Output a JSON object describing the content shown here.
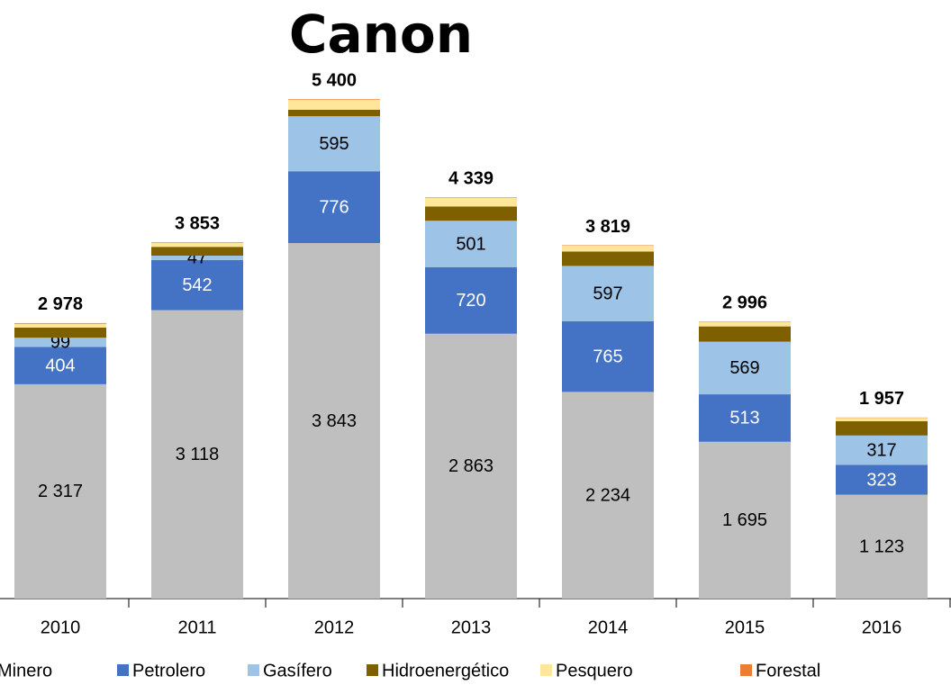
{
  "chart_data": {
    "type": "stacked-bar",
    "title": "Canon",
    "categories": [
      "2010",
      "2011",
      "2012",
      "2013",
      "2014",
      "2015",
      "2016"
    ],
    "series": [
      {
        "name": "Minero",
        "color": "#bfbfbf",
        "values": [
          2317,
          3118,
          3843,
          2863,
          2234,
          1695,
          1123
        ],
        "value_labels": [
          "2 317",
          "3 118",
          "3 843",
          "2 863",
          "2 234",
          "1 695",
          "1 123"
        ]
      },
      {
        "name": "Petrolero",
        "color": "#4472c4",
        "values": [
          404,
          542,
          776,
          720,
          765,
          513,
          323
        ],
        "value_labels": [
          "404",
          "542",
          "776",
          "720",
          "765",
          "513",
          "323"
        ]
      },
      {
        "name": "Gasífero",
        "color": "#9dc3e6",
        "values": [
          99,
          47,
          595,
          501,
          597,
          569,
          317
        ],
        "value_labels": [
          "99",
          "47",
          "595",
          "501",
          "597",
          "569",
          "317"
        ]
      },
      {
        "name": "Hidroenergético",
        "color": "#7f6000",
        "values": [
          110,
          95,
          70,
          155,
          155,
          165,
          155
        ]
      },
      {
        "name": "Pesquero",
        "color": "#ffe699",
        "values": [
          40,
          45,
          110,
          95,
          63,
          50,
          35
        ]
      },
      {
        "name": "Forestal",
        "color": "#ed7d31",
        "values": [
          8,
          6,
          6,
          5,
          5,
          4,
          4
        ]
      }
    ],
    "totals": [
      2978,
      3853,
      5400,
      4339,
      3819,
      2996,
      1957
    ],
    "total_labels": [
      "2 978",
      "3 853",
      "5 400",
      "4 339",
      "3 819",
      "2 996",
      "1 957"
    ],
    "legend": "bottom"
  }
}
